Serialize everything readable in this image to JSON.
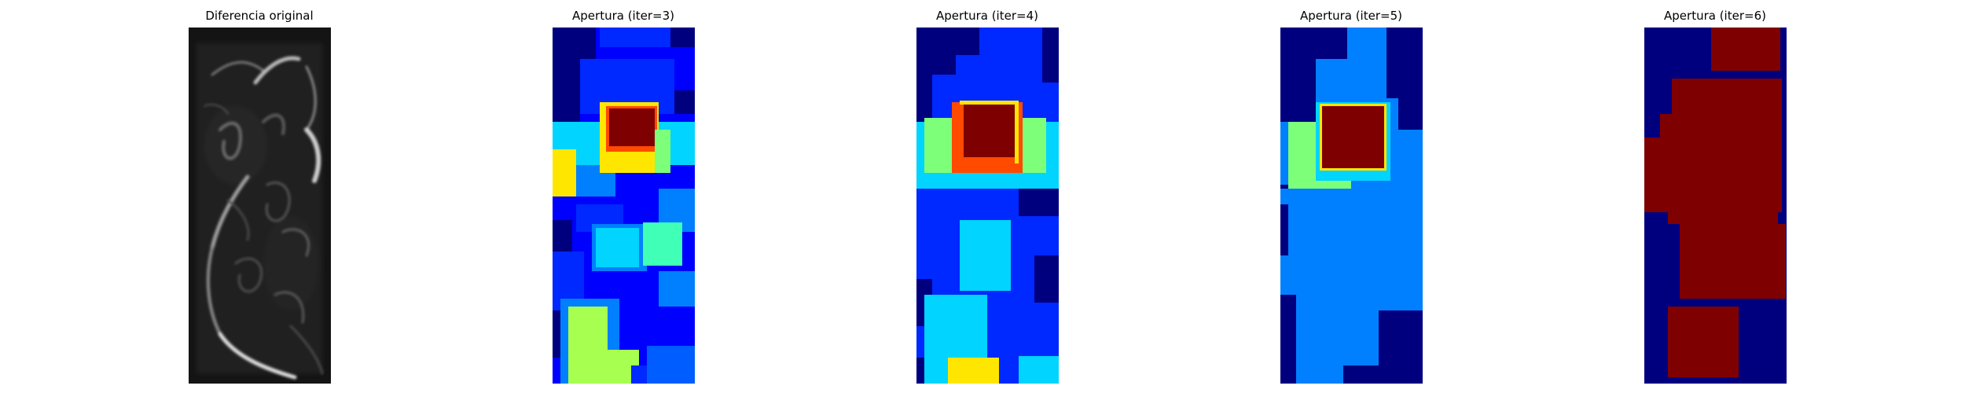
{
  "figure": {
    "panels": [
      {
        "title": "Diferencia original",
        "colormap": "gray"
      },
      {
        "title": "Apertura (iter=3)",
        "colormap": "jet"
      },
      {
        "title": "Apertura (iter=4)",
        "colormap": "jet"
      },
      {
        "title": "Apertura (iter=5)",
        "colormap": "jet"
      },
      {
        "title": "Apertura (iter=6)",
        "colormap": "jet"
      }
    ]
  },
  "colors": {
    "jet_darkblue": "#00007f",
    "jet_blue": "#0000ff",
    "jet_blue_mid": "#0029ff",
    "jet_lightblue": "#005dff",
    "jet_azure": "#0080ff",
    "jet_cyan": "#00d4ff",
    "jet_aquamarine": "#40ffb7",
    "jet_green": "#7dff7a",
    "jet_yellowgreen": "#a7ff50",
    "jet_yellow": "#ffe600",
    "jet_orange": "#ff4a00",
    "jet_darkred": "#7f0000"
  }
}
